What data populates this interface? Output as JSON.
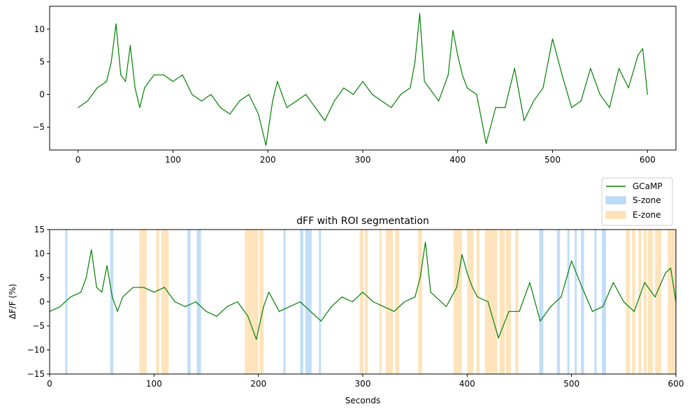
{
  "colors": {
    "trace": "#008000",
    "s_zone": "#a6cff5",
    "e_zone": "#fdd9a0",
    "axis": "#000000"
  },
  "chart_data": [
    {
      "type": "line",
      "title": "",
      "xlabel": "",
      "ylabel": "",
      "xlim": [
        -30,
        630
      ],
      "ylim": [
        -8.5,
        13.5
      ],
      "xticks": [
        0,
        100,
        200,
        300,
        400,
        500,
        600
      ],
      "yticks": [
        -5,
        0,
        5,
        10
      ],
      "grid": false,
      "series": [
        {
          "name": "GCaMP",
          "x": [
            0,
            10,
            20,
            30,
            35,
            40,
            45,
            50,
            55,
            60,
            65,
            70,
            80,
            90,
            100,
            110,
            120,
            130,
            140,
            150,
            160,
            170,
            180,
            190,
            198,
            205,
            210,
            220,
            230,
            240,
            250,
            260,
            270,
            280,
            290,
            300,
            310,
            320,
            330,
            340,
            350,
            355,
            360,
            365,
            370,
            380,
            390,
            395,
            400,
            405,
            410,
            420,
            430,
            440,
            450,
            460,
            470,
            480,
            490,
            500,
            510,
            520,
            530,
            540,
            550,
            560,
            570,
            580,
            590,
            595,
            600
          ],
          "values": [
            -2,
            -1,
            1,
            2,
            5,
            10.8,
            3,
            2,
            7.5,
            1,
            -2,
            1,
            3,
            3,
            2,
            3,
            0,
            -1,
            0,
            -2,
            -3,
            -1,
            0,
            -3,
            -7.8,
            -1,
            2,
            -2,
            -1,
            0,
            -2,
            -4,
            -1,
            1,
            0,
            2,
            0,
            -1,
            -2,
            0,
            1,
            5,
            12.4,
            2,
            1,
            -1,
            3,
            9.8,
            6,
            3,
            1,
            0,
            -7.5,
            -2,
            -2,
            4,
            -4,
            -1,
            1,
            8.5,
            3,
            -2,
            -1,
            4,
            0,
            -2,
            4,
            1,
            6,
            7,
            0
          ]
        }
      ]
    },
    {
      "type": "line",
      "title": "dFF with ROI segmentation",
      "xlabel": "Seconds",
      "ylabel": "ΔF/F (%)",
      "xlim": [
        0,
        600
      ],
      "ylim": [
        -15,
        15
      ],
      "xticks": [
        0,
        100,
        200,
        300,
        400,
        500,
        600
      ],
      "yticks": [
        -15,
        -10,
        -5,
        0,
        5,
        10,
        15
      ],
      "grid": false,
      "legend": {
        "placement": "above plot, top-right",
        "entries": [
          "GCaMP",
          "S-zone",
          "E-zone"
        ]
      },
      "s_zones": [
        [
          15,
          17
        ],
        [
          58,
          61
        ],
        [
          132,
          135
        ],
        [
          141,
          145
        ],
        [
          224,
          226
        ],
        [
          240,
          243
        ],
        [
          245,
          251
        ],
        [
          258,
          260
        ],
        [
          469,
          473
        ],
        [
          486,
          489
        ],
        [
          496,
          498
        ],
        [
          503,
          505
        ],
        [
          509,
          512
        ],
        [
          522,
          524
        ],
        [
          529,
          533
        ]
      ],
      "e_zones": [
        [
          86,
          93
        ],
        [
          102,
          105
        ],
        [
          107,
          114
        ],
        [
          187,
          196
        ],
        [
          196,
          200
        ],
        [
          201,
          205
        ],
        [
          297,
          301
        ],
        [
          302,
          305
        ],
        [
          316,
          318
        ],
        [
          322,
          326
        ],
        [
          326,
          329
        ],
        [
          331,
          335
        ],
        [
          353,
          357
        ],
        [
          387,
          395
        ],
        [
          400,
          406
        ],
        [
          409,
          412
        ],
        [
          417,
          424
        ],
        [
          424,
          429
        ],
        [
          431,
          436
        ],
        [
          437,
          442
        ],
        [
          446,
          449
        ],
        [
          552,
          556
        ],
        [
          558,
          561
        ],
        [
          564,
          567
        ],
        [
          569,
          572
        ],
        [
          573,
          578
        ],
        [
          580,
          586
        ],
        [
          592,
          596
        ],
        [
          596,
          600
        ]
      ],
      "series": [
        {
          "name": "GCaMP",
          "x": [
            0,
            10,
            20,
            30,
            35,
            40,
            45,
            50,
            55,
            60,
            65,
            70,
            80,
            90,
            100,
            110,
            120,
            130,
            140,
            150,
            160,
            170,
            180,
            190,
            198,
            205,
            210,
            220,
            230,
            240,
            250,
            260,
            270,
            280,
            290,
            300,
            310,
            320,
            330,
            340,
            350,
            355,
            360,
            365,
            370,
            380,
            390,
            395,
            400,
            405,
            410,
            420,
            430,
            440,
            450,
            460,
            470,
            480,
            490,
            500,
            510,
            520,
            530,
            540,
            550,
            560,
            570,
            580,
            590,
            595,
            600
          ],
          "values": [
            -2,
            -1,
            1,
            2,
            5,
            10.8,
            3,
            2,
            7.5,
            1,
            -2,
            1,
            3,
            3,
            2,
            3,
            0,
            -1,
            0,
            -2,
            -3,
            -1,
            0,
            -3,
            -7.8,
            -1,
            2,
            -2,
            -1,
            0,
            -2,
            -4,
            -1,
            1,
            0,
            2,
            0,
            -1,
            -2,
            0,
            1,
            5,
            12.4,
            2,
            1,
            -1,
            3,
            9.8,
            6,
            3,
            1,
            0,
            -7.5,
            -2,
            -2,
            4,
            -4,
            -1,
            1,
            8.5,
            3,
            -2,
            -1,
            4,
            0,
            -2,
            4,
            1,
            6,
            7,
            0
          ]
        }
      ]
    }
  ]
}
